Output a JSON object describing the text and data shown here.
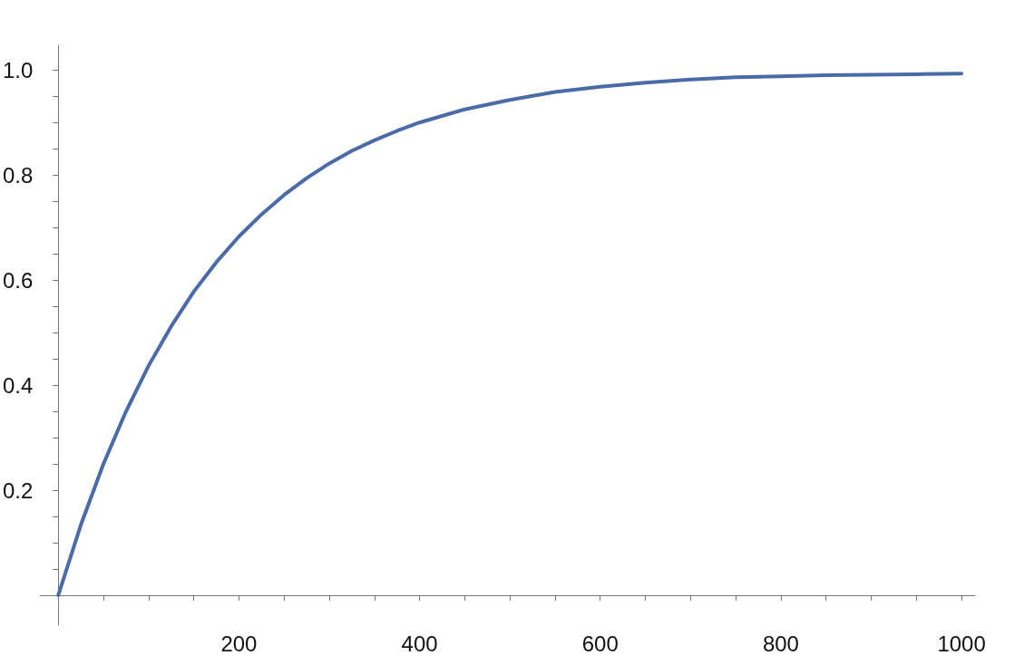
{
  "chart_data": {
    "type": "line",
    "x": [
      0,
      25,
      50,
      75,
      100,
      125,
      150,
      175,
      200,
      225,
      250,
      275,
      300,
      325,
      350,
      375,
      400,
      450,
      500,
      550,
      600,
      650,
      700,
      750,
      800,
      850,
      900,
      950,
      1000
    ],
    "series": [
      {
        "color": "#4a6aa8",
        "values": [
          0,
          0.134,
          0.25,
          0.35,
          0.437,
          0.512,
          0.578,
          0.634,
          0.683,
          0.725,
          0.762,
          0.794,
          0.822,
          0.846,
          0.866,
          0.884,
          0.9,
          0.925,
          0.943,
          0.958,
          0.968,
          0.976,
          0.982,
          0.986,
          0.988,
          0.99,
          0.991,
          0.992,
          0.993
        ]
      }
    ],
    "xlim": [
      -20,
      1015
    ],
    "ylim": [
      -0.057,
      1.047
    ],
    "xticks": [
      {
        "value": 50,
        "label": null
      },
      {
        "value": 100,
        "label": null
      },
      {
        "value": 150,
        "label": null
      },
      200,
      {
        "value": 250,
        "label": null
      },
      {
        "value": 300,
        "label": null
      },
      {
        "value": 350,
        "label": null
      },
      400,
      {
        "value": 450,
        "label": null
      },
      {
        "value": 500,
        "label": null
      },
      {
        "value": 550,
        "label": null
      },
      600,
      {
        "value": 650,
        "label": null
      },
      {
        "value": 700,
        "label": null
      },
      {
        "value": 750,
        "label": null
      },
      800,
      {
        "value": 850,
        "label": null
      },
      {
        "value": 900,
        "label": null
      },
      {
        "value": 950,
        "label": null
      },
      1000
    ],
    "yticks": [
      {
        "value": 0.05,
        "label": null
      },
      {
        "value": 0.1,
        "label": null
      },
      {
        "value": 0.15,
        "label": null
      },
      0.2,
      {
        "value": 0.25,
        "label": null
      },
      {
        "value": 0.3,
        "label": null
      },
      {
        "value": 0.35,
        "label": null
      },
      0.4,
      {
        "value": 0.45,
        "label": null
      },
      {
        "value": 0.5,
        "label": null
      },
      {
        "value": 0.55,
        "label": null
      },
      0.6,
      {
        "value": 0.65,
        "label": null
      },
      {
        "value": 0.7,
        "label": null
      },
      {
        "value": 0.75,
        "label": null
      },
      0.8,
      {
        "value": 0.85,
        "label": null
      },
      {
        "value": 0.9,
        "label": null
      },
      {
        "value": 0.95,
        "label": null
      },
      {
        "value": 1,
        "label": "1.0"
      }
    ],
    "grid": false,
    "marker": "none",
    "line_style": "solid"
  }
}
